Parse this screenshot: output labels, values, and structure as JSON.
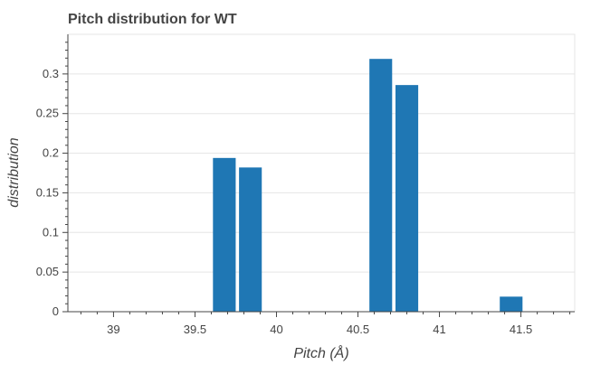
{
  "chart_data": {
    "type": "bar",
    "title": "Pitch distribution for WT",
    "xlabel": "Pitch (Å)",
    "ylabel": "distribution",
    "bin_width": 0.15,
    "bars": [
      {
        "x": 39.68,
        "y": 0.194
      },
      {
        "x": 39.84,
        "y": 0.182
      },
      {
        "x": 40.16,
        "y": 0.0
      },
      {
        "x": 40.64,
        "y": 0.319
      },
      {
        "x": 40.8,
        "y": 0.286
      },
      {
        "x": 41.44,
        "y": 0.019
      }
    ],
    "xlim": [
      38.72,
      41.83
    ],
    "ylim": [
      0,
      0.35
    ],
    "xticks": [
      "39",
      "39.5",
      "40",
      "40.5",
      "41",
      "41.5"
    ],
    "xtick_values": [
      39,
      39.5,
      40,
      40.5,
      41,
      41.5
    ],
    "yticks": [
      "0",
      "0.05",
      "0.1",
      "0.15",
      "0.2",
      "0.25",
      "0.3"
    ],
    "ytick_values": [
      0,
      0.05,
      0.1,
      0.15,
      0.2,
      0.25,
      0.3
    ],
    "x_minor_step": 0.1,
    "grid": true,
    "colors": {
      "bar": "#1f77b4",
      "grid": "#e5e5e5",
      "axis": "#444444",
      "text": "#444444",
      "frame": "#e5e5e5"
    }
  }
}
